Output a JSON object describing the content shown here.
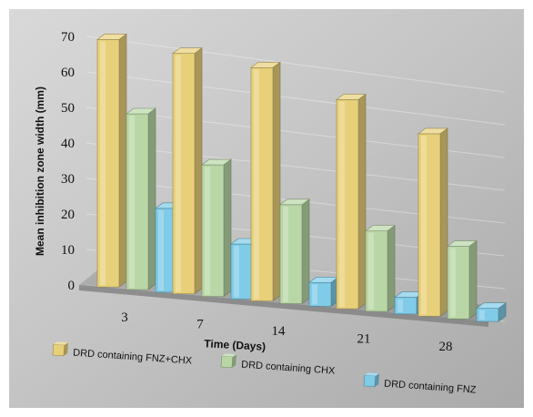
{
  "chart_data": {
    "type": "bar",
    "title": "",
    "xlabel": "Time (Days)",
    "ylabel": "Mean inhibition zone width (mm)",
    "categories": [
      "3",
      "7",
      "14",
      "21",
      "28"
    ],
    "ylim": [
      0,
      70
    ],
    "yticks": [
      "0",
      "10",
      "20",
      "30",
      "40",
      "50",
      "60",
      "70"
    ],
    "series": [
      {
        "name": "DRD containing FNZ+CHX",
        "values": [
          70,
          69,
          68,
          62,
          55
        ],
        "color": "#e8d07a"
      },
      {
        "name": "DRD containing CHX",
        "values": [
          50,
          38,
          29,
          24,
          22
        ],
        "color": "#b9d7a6"
      },
      {
        "name": "DRD containing FNZ",
        "values": [
          24,
          16,
          7,
          5,
          4
        ],
        "color": "#7fcbe8"
      }
    ],
    "grid": true,
    "legend_position": "bottom",
    "style": "3d-perspective"
  }
}
